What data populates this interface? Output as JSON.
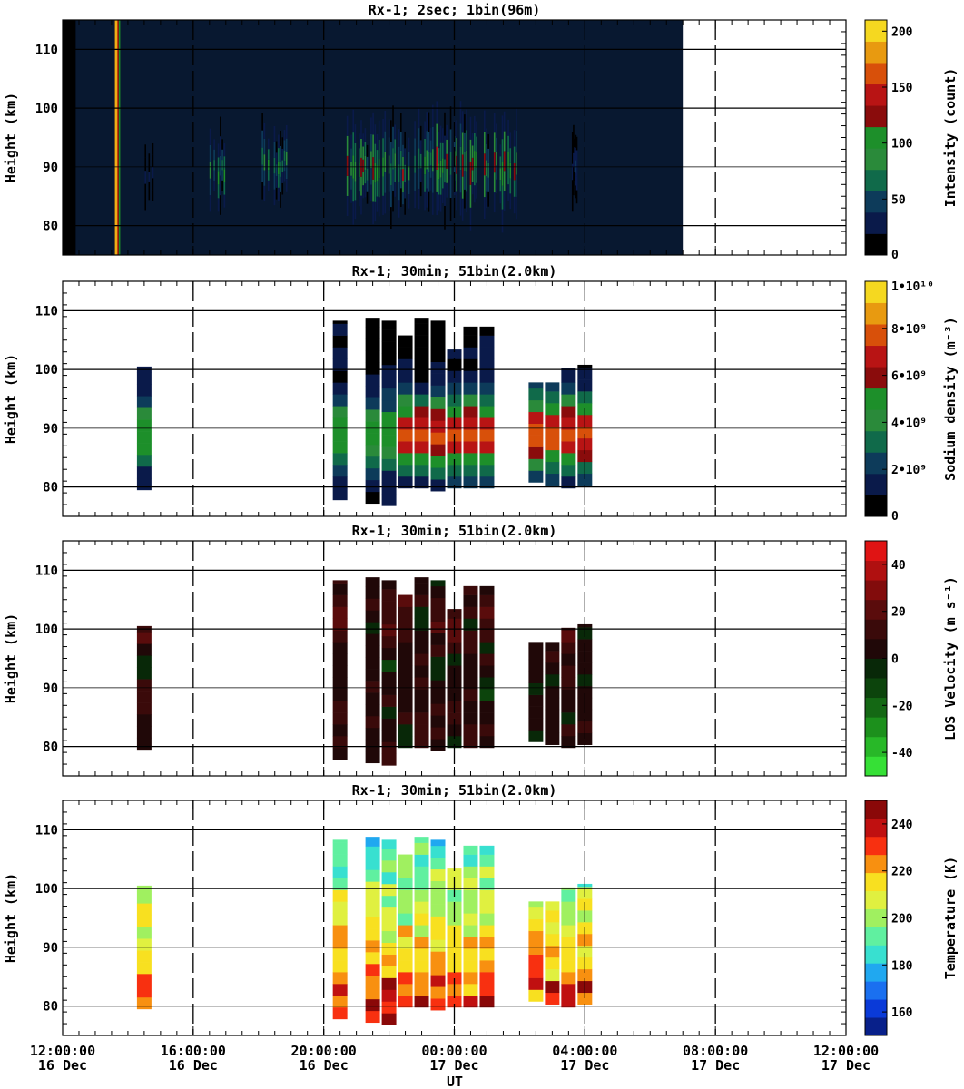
{
  "figure": {
    "x_axis_label": "UT",
    "x_ticks": [
      {
        "time": "12:00:00",
        "date": "16 Dec",
        "hour": 0
      },
      {
        "time": "16:00:00",
        "date": "16 Dec",
        "hour": 4
      },
      {
        "time": "20:00:00",
        "date": "16 Dec",
        "hour": 8
      },
      {
        "time": "00:00:00",
        "date": "17 Dec",
        "hour": 12
      },
      {
        "time": "04:00:00",
        "date": "17 Dec",
        "hour": 16
      },
      {
        "time": "08:00:00",
        "date": "17 Dec",
        "hour": 20
      },
      {
        "time": "12:00:00",
        "date": "17 Dec",
        "hour": 24
      }
    ]
  },
  "chart_data": [
    {
      "type": "heatmap",
      "title": "Rx-1;  2sec; 1bin(96m)",
      "ylabel": "Height (km)",
      "ylim": [
        75,
        115
      ],
      "xlim_hours": [
        0,
        24
      ],
      "y_ticks": [
        80,
        90,
        100,
        110
      ],
      "data_extent_hours": [
        0,
        19
      ],
      "colorbar": {
        "label": "Intensity (count)",
        "range": [
          0,
          210
        ],
        "ticks": [
          {
            "v": 0,
            "label": "0"
          },
          {
            "v": 50,
            "label": "50"
          },
          {
            "v": 100,
            "label": "100"
          },
          {
            "v": 150,
            "label": "150"
          },
          {
            "v": 200,
            "label": "200"
          }
        ],
        "colors": [
          "#000000",
          "#0a1a4a",
          "#0d3b5a",
          "#106a4a",
          "#2a8a3a",
          "#1d8f2a",
          "#8a0c0c",
          "#b81414",
          "#d8500a",
          "#e89a10",
          "#f5d820"
        ]
      },
      "background_color": "#081830",
      "events": [
        {
          "start": 1.6,
          "end": 1.75,
          "hmin": 75,
          "hmax": 115,
          "level": 160
        },
        {
          "start": 2.4,
          "end": 2.8,
          "hmin": 83,
          "hmax": 96,
          "level": 30
        },
        {
          "start": 4.5,
          "end": 5.0,
          "hmin": 81,
          "hmax": 98,
          "level": 120
        },
        {
          "start": 6.1,
          "end": 6.9,
          "hmin": 82,
          "hmax": 99,
          "level": 130
        },
        {
          "start": 8.7,
          "end": 14.0,
          "hmin": 80,
          "hmax": 100,
          "level": 140
        },
        {
          "start": 15.6,
          "end": 15.8,
          "hmin": 83,
          "hmax": 97,
          "level": 40
        }
      ]
    },
    {
      "type": "heatmap",
      "title": "Rx-1; 30min; 51bin(2.0km)",
      "ylabel": "Height (km)",
      "ylim": [
        75,
        115
      ],
      "xlim_hours": [
        0,
        24
      ],
      "y_ticks": [
        80,
        90,
        100,
        110
      ],
      "colorbar": {
        "label": "Sodium density",
        "unit": "m⁻³",
        "range": [
          0,
          10
        ],
        "ticks": [
          {
            "v": 0,
            "label": "0"
          },
          {
            "v": 2,
            "label": "2•10⁹"
          },
          {
            "v": 4,
            "label": "4•10⁹"
          },
          {
            "v": 6,
            "label": "6•10⁹"
          },
          {
            "v": 8,
            "label": "8•10⁹"
          },
          {
            "v": 10,
            "label": "1•10¹⁰"
          }
        ],
        "colors": [
          "#000000",
          "#0a1a4a",
          "#0d3b5a",
          "#106a4a",
          "#2a8a3a",
          "#1d8f2a",
          "#8a0c0c",
          "#b81414",
          "#d8500a",
          "#e89a10",
          "#f5d820"
        ]
      },
      "columns": [
        {
          "t": 2.5,
          "bottom": 79.5,
          "top": 100.5
        },
        {
          "t": 8.5,
          "bottom": 77.8,
          "top": 108.3
        },
        {
          "t": 9.5,
          "bottom": 77.2,
          "top": 108.8
        },
        {
          "t": 10.0,
          "bottom": 76.8,
          "top": 108.3
        },
        {
          "t": 10.5,
          "bottom": 79.8,
          "top": 105.8
        },
        {
          "t": 11.0,
          "bottom": 79.8,
          "top": 108.8
        },
        {
          "t": 11.5,
          "bottom": 79.3,
          "top": 108.3
        },
        {
          "t": 12.0,
          "bottom": 79.8,
          "top": 103.4
        },
        {
          "t": 12.5,
          "bottom": 79.8,
          "top": 107.3
        },
        {
          "t": 13.0,
          "bottom": 79.8,
          "top": 107.3
        },
        {
          "t": 14.5,
          "bottom": 80.8,
          "top": 97.8
        },
        {
          "t": 15.0,
          "bottom": 80.3,
          "top": 97.8
        },
        {
          "t": 15.5,
          "bottom": 79.8,
          "top": 100.2
        },
        {
          "t": 16.0,
          "bottom": 80.3,
          "top": 100.8
        }
      ]
    },
    {
      "type": "heatmap",
      "title": "Rx-1; 30min; 51bin(2.0km)",
      "ylabel": "Height (km)",
      "ylim": [
        75,
        115
      ],
      "xlim_hours": [
        0,
        24
      ],
      "y_ticks": [
        80,
        90,
        100,
        110
      ],
      "colorbar": {
        "label": "LOS Velocity",
        "unit": "m s⁻¹",
        "range": [
          -50,
          50
        ],
        "ticks": [
          {
            "v": -40,
            "label": "-40"
          },
          {
            "v": -20,
            "label": "-20"
          },
          {
            "v": 0,
            "label": "0"
          },
          {
            "v": 20,
            "label": "20"
          },
          {
            "v": 40,
            "label": "40"
          }
        ],
        "colors": [
          "#36e036",
          "#28b828",
          "#1c901c",
          "#146814",
          "#0c440c",
          "#082808",
          "#200808",
          "#3a0a0a",
          "#5a0c0c",
          "#820c0c",
          "#b01010",
          "#e01414"
        ]
      },
      "columns": [
        {
          "t": 2.5,
          "bottom": 79.5,
          "top": 100.5
        },
        {
          "t": 8.5,
          "bottom": 77.8,
          "top": 108.3
        },
        {
          "t": 9.5,
          "bottom": 77.2,
          "top": 108.8
        },
        {
          "t": 10.0,
          "bottom": 76.8,
          "top": 108.3
        },
        {
          "t": 10.5,
          "bottom": 79.8,
          "top": 105.8
        },
        {
          "t": 11.0,
          "bottom": 79.8,
          "top": 108.8
        },
        {
          "t": 11.5,
          "bottom": 79.3,
          "top": 108.3
        },
        {
          "t": 12.0,
          "bottom": 79.8,
          "top": 103.4
        },
        {
          "t": 12.5,
          "bottom": 79.8,
          "top": 107.3
        },
        {
          "t": 13.0,
          "bottom": 79.8,
          "top": 107.3
        },
        {
          "t": 14.5,
          "bottom": 80.8,
          "top": 97.8
        },
        {
          "t": 15.0,
          "bottom": 80.3,
          "top": 97.8
        },
        {
          "t": 15.5,
          "bottom": 79.8,
          "top": 100.2
        },
        {
          "t": 16.0,
          "bottom": 80.3,
          "top": 100.8
        }
      ]
    },
    {
      "type": "heatmap",
      "title": "Rx-1; 30min; 51bin(2.0km)",
      "ylabel": "Height (km)",
      "ylim": [
        75,
        115
      ],
      "xlim_hours": [
        0,
        24
      ],
      "y_ticks": [
        80,
        90,
        100,
        110
      ],
      "colorbar": {
        "label": "Temperature (K)",
        "range": [
          150,
          250
        ],
        "ticks": [
          {
            "v": 160,
            "label": "160"
          },
          {
            "v": 180,
            "label": "180"
          },
          {
            "v": 200,
            "label": "200"
          },
          {
            "v": 220,
            "label": "220"
          },
          {
            "v": 240,
            "label": "240"
          }
        ],
        "colors": [
          "#08208a",
          "#0a3ad8",
          "#1a70f0",
          "#20a8f0",
          "#38e0d0",
          "#60f0a0",
          "#a0f060",
          "#e0f040",
          "#f8e020",
          "#f89010",
          "#f83010",
          "#c01010",
          "#8a0808"
        ]
      },
      "columns": [
        {
          "t": 2.5,
          "bottom": 79.5,
          "top": 100.5
        },
        {
          "t": 8.5,
          "bottom": 77.8,
          "top": 108.3
        },
        {
          "t": 9.5,
          "bottom": 77.2,
          "top": 108.8
        },
        {
          "t": 10.0,
          "bottom": 76.8,
          "top": 108.3
        },
        {
          "t": 10.5,
          "bottom": 79.8,
          "top": 105.8
        },
        {
          "t": 11.0,
          "bottom": 79.8,
          "top": 108.8
        },
        {
          "t": 11.5,
          "bottom": 79.3,
          "top": 108.3
        },
        {
          "t": 12.0,
          "bottom": 79.8,
          "top": 103.4
        },
        {
          "t": 12.5,
          "bottom": 79.8,
          "top": 107.3
        },
        {
          "t": 13.0,
          "bottom": 79.8,
          "top": 107.3
        },
        {
          "t": 14.5,
          "bottom": 80.8,
          "top": 97.8
        },
        {
          "t": 15.0,
          "bottom": 80.3,
          "top": 97.8
        },
        {
          "t": 15.5,
          "bottom": 79.8,
          "top": 100.2
        },
        {
          "t": 16.0,
          "bottom": 80.3,
          "top": 100.8
        }
      ]
    }
  ]
}
